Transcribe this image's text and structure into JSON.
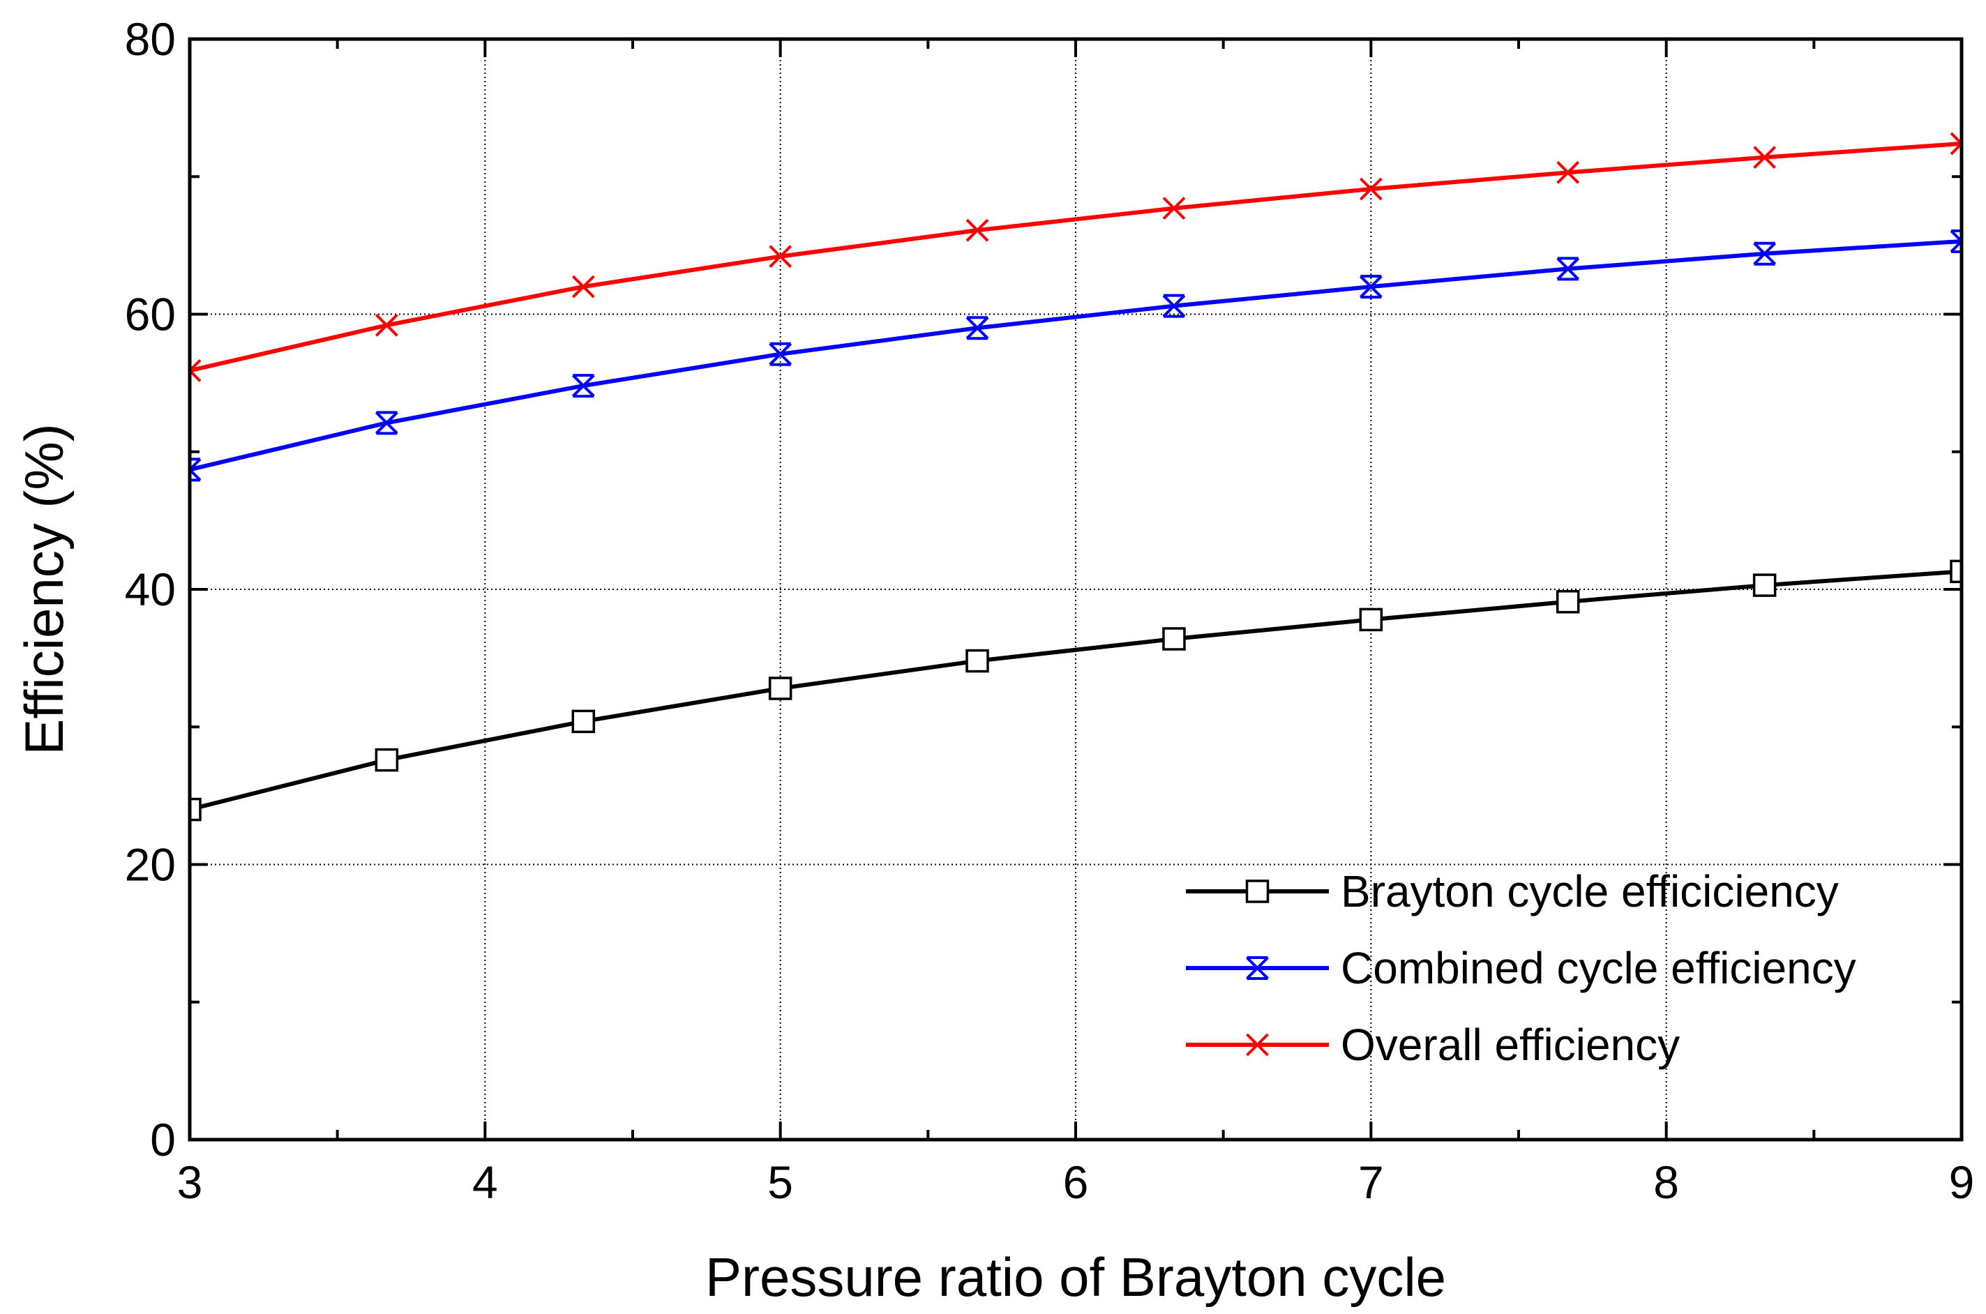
{
  "chart_data": {
    "type": "line",
    "title": "",
    "xlabel": "Pressure ratio of Brayton cycle",
    "ylabel": "Efficiency (%)",
    "xlim": [
      3,
      9
    ],
    "ylim": [
      0,
      80
    ],
    "x_ticks": [
      3,
      4,
      5,
      6,
      7,
      8,
      9
    ],
    "y_ticks": [
      0,
      20,
      40,
      60,
      80
    ],
    "grid": true,
    "legend_position": "bottom-right",
    "x": [
      3,
      3.667,
      4.333,
      5,
      5.667,
      6.333,
      7,
      7.667,
      8.333,
      9
    ],
    "series": [
      {
        "name": "Brayton cycle efficiciency",
        "color": "#000000",
        "marker": "open-square",
        "values": [
          24.0,
          27.6,
          30.4,
          32.8,
          34.8,
          36.4,
          37.8,
          39.1,
          40.3,
          41.3
        ]
      },
      {
        "name": "Combined cycle efficiency",
        "color": "#0000ff",
        "marker": "x-bar",
        "values": [
          48.7,
          52.1,
          54.8,
          57.1,
          59.0,
          60.6,
          62.0,
          63.3,
          64.4,
          65.3
        ]
      },
      {
        "name": "Overall efficiency",
        "color": "#ff0000",
        "marker": "x",
        "values": [
          55.9,
          59.2,
          62.0,
          64.2,
          66.1,
          67.7,
          69.1,
          70.3,
          71.4,
          72.4
        ]
      }
    ]
  }
}
